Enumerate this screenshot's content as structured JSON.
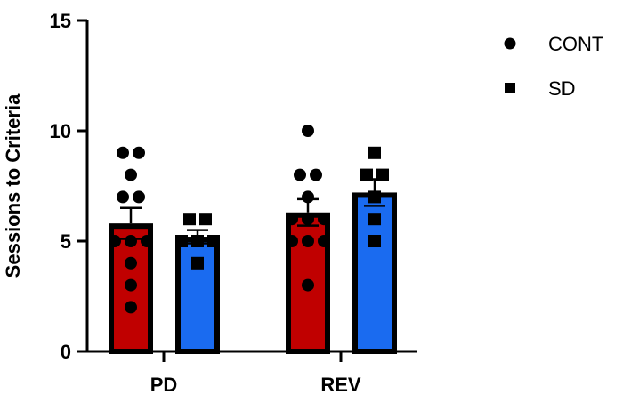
{
  "chart_data": {
    "type": "bar",
    "title": "",
    "xlabel": "",
    "ylabel": "Sessions to Criteria",
    "ylim": [
      0,
      15
    ],
    "yticks": [
      0,
      5,
      10,
      15
    ],
    "grid": false,
    "legend_position": "top-right",
    "categories": [
      "PD",
      "REV"
    ],
    "series": [
      {
        "name": "CONT",
        "marker": "circle",
        "color": "#C00000",
        "values": [
          5.8,
          6.3
        ],
        "sem": [
          0.7,
          0.6
        ],
        "points": [
          [
            9,
            9,
            8,
            7,
            7,
            5,
            5,
            5,
            4,
            3,
            2
          ],
          [
            10,
            8,
            8,
            7,
            6,
            6,
            6,
            5,
            5,
            5,
            3
          ]
        ]
      },
      {
        "name": "SD",
        "marker": "square",
        "color": "#1A6BF0",
        "values": [
          5.2,
          7.2
        ],
        "sem": [
          0.3,
          0.6
        ],
        "points": [
          [
            6,
            6,
            5,
            5,
            5,
            4
          ],
          [
            9,
            8,
            8,
            7,
            6,
            5
          ]
        ]
      }
    ]
  },
  "legend": {
    "items": [
      {
        "label": "CONT",
        "marker": "circle"
      },
      {
        "label": "SD",
        "marker": "square"
      }
    ]
  }
}
